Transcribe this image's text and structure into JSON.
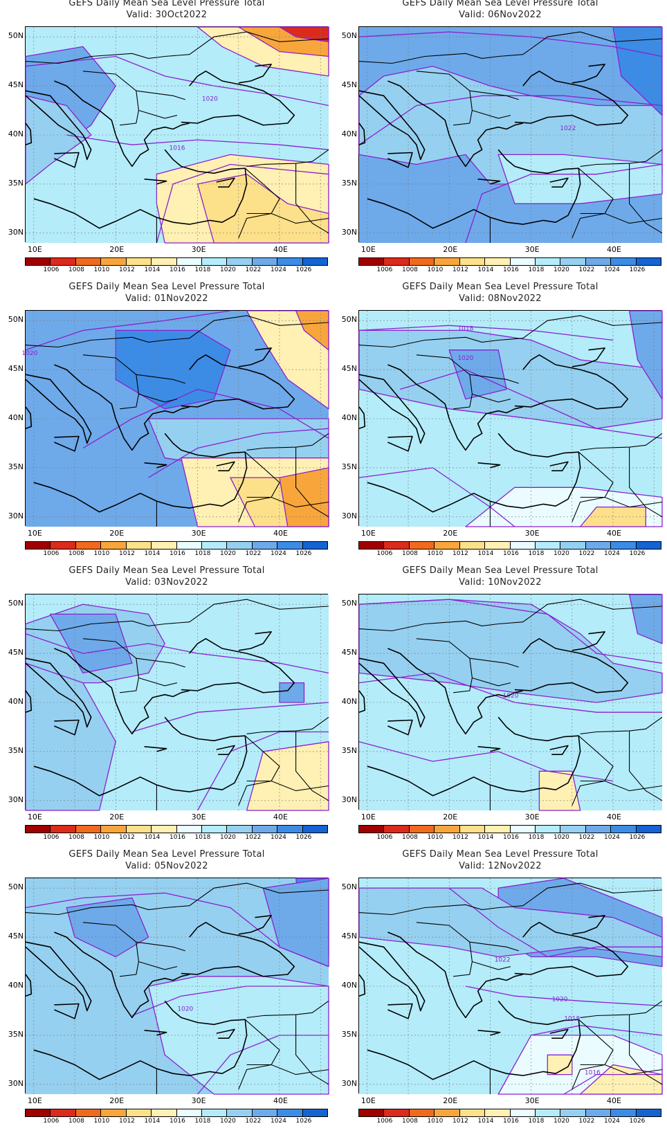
{
  "common": {
    "title": "GEFS Daily Mean Sea Level Pressure Total",
    "lat_labels": [
      "50N",
      "45N",
      "40N",
      "35N",
      "30N"
    ],
    "lon_labels": [
      "10E",
      "20E",
      "30E",
      "40E"
    ],
    "colorbar_labels": [
      "1006",
      "1008",
      "1010",
      "1012",
      "1014",
      "1016",
      "1018",
      "1020",
      "1022",
      "1024",
      "1026"
    ],
    "colorbar_colors": [
      "#a00000",
      "#dc2a1c",
      "#f06a1e",
      "#f8a63c",
      "#fde08a",
      "#fff0b4",
      "#eafcff",
      "#b4ecfa",
      "#96d0f0",
      "#6eaaea",
      "#3c8ce6",
      "#1464d2"
    ]
  },
  "panels": [
    {
      "valid": "Valid: 30Oct2022",
      "contour_labels": [
        {
          "text": "1020",
          "lon": 31.5,
          "lat": 43.5
        },
        {
          "text": "1016",
          "lon": 27.5,
          "lat": 38.5
        }
      ]
    },
    {
      "valid": "Valid: 06Nov2022",
      "contour_labels": [
        {
          "text": "1022",
          "lon": 34.5,
          "lat": 40.5
        }
      ]
    },
    {
      "valid": "Valid: 01Nov2022",
      "contour_labels": [
        {
          "text": "1020",
          "lon": 9.5,
          "lat": 46.5
        }
      ]
    },
    {
      "valid": "Valid: 08Nov2022",
      "contour_labels": [
        {
          "text": "1018",
          "lon": 22.0,
          "lat": 49.0
        },
        {
          "text": "1020",
          "lon": 22.0,
          "lat": 46.0
        }
      ]
    },
    {
      "valid": "Valid: 03Nov2022",
      "contour_labels": []
    },
    {
      "valid": "Valid: 10Nov2022",
      "contour_labels": [
        {
          "text": "1020",
          "lon": 27.5,
          "lat": 40.5
        }
      ]
    },
    {
      "valid": "Valid: 05Nov2022",
      "contour_labels": [
        {
          "text": "1020",
          "lon": 28.5,
          "lat": 37.5
        }
      ]
    },
    {
      "valid": "Valid: 12Nov2022",
      "contour_labels": [
        {
          "text": "1022",
          "lon": 26.5,
          "lat": 42.5
        },
        {
          "text": "1020",
          "lon": 33.5,
          "lat": 38.5
        },
        {
          "text": "1018",
          "lon": 35.0,
          "lat": 36.5
        },
        {
          "text": "1016",
          "lon": 37.5,
          "lat": 31.0
        }
      ]
    }
  ]
}
